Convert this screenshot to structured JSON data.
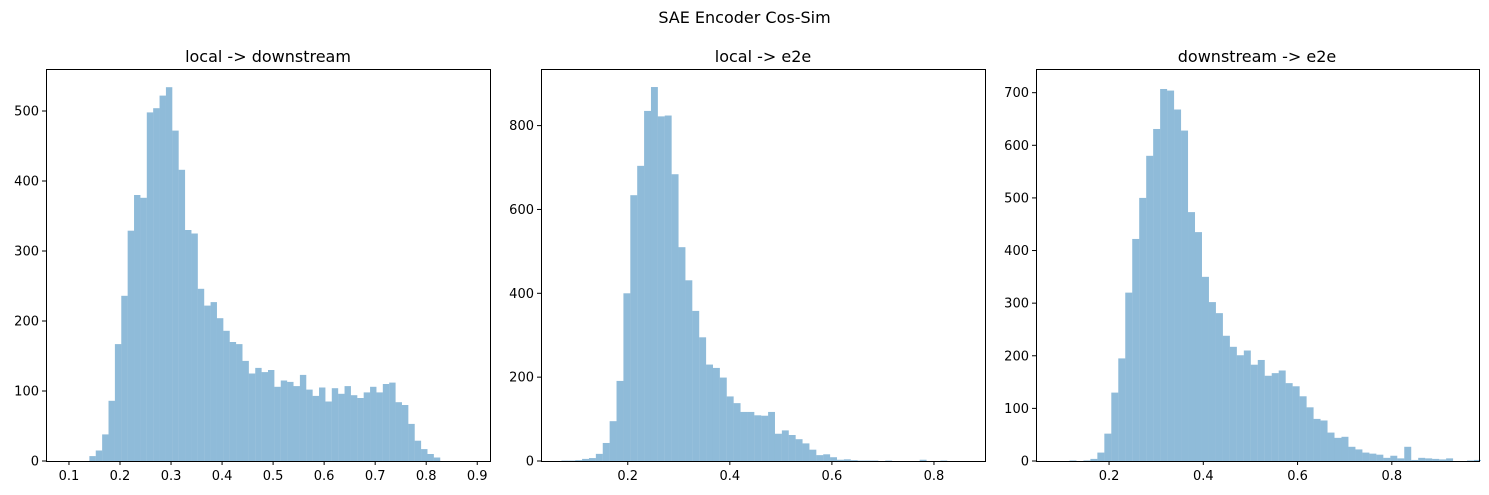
{
  "figure": {
    "suptitle": "SAE Encoder Cos-Sim"
  },
  "style": {
    "bar_color": "#1f77b4",
    "bar_alpha": 0.5
  },
  "chart_data": [
    {
      "type": "bar",
      "title": "local -> downstream",
      "xlabel": "",
      "ylabel": "",
      "xlim": [
        0.055,
        0.925
      ],
      "ylim": [
        0,
        560
      ],
      "xticks": [
        0.1,
        0.2,
        0.3,
        0.4,
        0.5,
        0.6,
        0.7,
        0.8,
        0.9
      ],
      "xtick_labels": [
        "0.1",
        "0.2",
        "0.3",
        "0.4",
        "0.5",
        "0.6",
        "0.7",
        "0.8",
        "0.9"
      ],
      "yticks": [
        0,
        100,
        200,
        300,
        400,
        500
      ],
      "ytick_labels": [
        "0",
        "100",
        "200",
        "300",
        "400",
        "500"
      ],
      "bin_start": 0.14,
      "bin_width": 0.0125,
      "values": [
        7,
        15,
        38,
        86,
        167,
        236,
        329,
        380,
        376,
        498,
        504,
        522,
        534,
        472,
        416,
        330,
        325,
        246,
        222,
        227,
        204,
        186,
        170,
        167,
        143,
        125,
        133,
        127,
        130,
        106,
        115,
        113,
        107,
        123,
        102,
        93,
        105,
        85,
        104,
        96,
        107,
        94,
        90,
        98,
        106,
        98,
        110,
        112,
        84,
        80,
        53,
        29,
        17,
        10,
        5
      ]
    },
    {
      "type": "bar",
      "title": "local -> e2e",
      "xlabel": "",
      "ylabel": "",
      "xlim": [
        0.03,
        0.9
      ],
      "ylim": [
        0,
        935
      ],
      "xticks": [
        0.2,
        0.4,
        0.6,
        0.8
      ],
      "xtick_labels": [
        "0.2",
        "0.4",
        "0.6",
        "0.8"
      ],
      "yticks": [
        0,
        200,
        400,
        600,
        800
      ],
      "ytick_labels": [
        "0",
        "200",
        "400",
        "600",
        "800"
      ],
      "bin_start": 0.07,
      "bin_width": 0.0135,
      "values": [
        1,
        1,
        2,
        5,
        7,
        17,
        43,
        95,
        191,
        400,
        634,
        704,
        835,
        892,
        822,
        824,
        684,
        510,
        431,
        358,
        295,
        230,
        222,
        199,
        154,
        138,
        117,
        117,
        109,
        108,
        117,
        65,
        73,
        62,
        52,
        42,
        27,
        14,
        16,
        9,
        3,
        4,
        2,
        1,
        1,
        1,
        0,
        1,
        0,
        0,
        0,
        0,
        3,
        0,
        0,
        1,
        0
      ]
    },
    {
      "type": "bar",
      "title": "downstream -> e2e",
      "xlabel": "",
      "ylabel": "",
      "xlim": [
        0.045,
        0.985
      ],
      "ylim": [
        0,
        745
      ],
      "xticks": [
        0.2,
        0.4,
        0.6,
        0.8
      ],
      "xtick_labels": [
        "0.2",
        "0.4",
        "0.6",
        "0.8"
      ],
      "yticks": [
        0,
        100,
        200,
        300,
        400,
        500,
        600,
        700
      ],
      "ytick_labels": [
        "0",
        "100",
        "200",
        "300",
        "400",
        "500",
        "600",
        "700"
      ],
      "bin_start": 0.116,
      "bin_width": 0.0148,
      "values": [
        1,
        0,
        1,
        4,
        16,
        52,
        130,
        195,
        320,
        422,
        500,
        580,
        631,
        707,
        704,
        668,
        628,
        473,
        435,
        350,
        302,
        281,
        238,
        217,
        201,
        210,
        183,
        192,
        162,
        167,
        172,
        148,
        142,
        123,
        102,
        80,
        77,
        54,
        44,
        46,
        27,
        22,
        16,
        14,
        12,
        6,
        10,
        5,
        27,
        2,
        6,
        5,
        4,
        3,
        5,
        0,
        0,
        1,
        2
      ]
    }
  ]
}
